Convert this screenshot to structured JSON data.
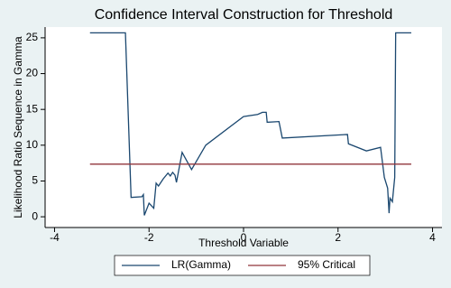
{
  "chart_data": {
    "type": "line",
    "title": "Confidence Interval Construction for Threshold",
    "x_label": "Threshold Variable",
    "y_label": "Likelihood Ratio Sequence in Gamma",
    "xlim": [
      -4.2,
      4.2
    ],
    "xticks": [
      -4,
      -2,
      0,
      2,
      4
    ],
    "ylim": [
      -1.5,
      26.5
    ],
    "yticks": [
      0,
      5,
      10,
      15,
      20,
      25
    ],
    "grid": false,
    "legend": "bottom",
    "series": [
      {
        "name": "LR(Gamma)",
        "color": "#1a476f",
        "x": [
          -3.25,
          -2.5,
          -2.38,
          -2.15,
          -2.12,
          -2.1,
          -2.0,
          -1.9,
          -1.85,
          -1.8,
          -1.7,
          -1.6,
          -1.55,
          -1.5,
          -1.45,
          -1.42,
          -1.3,
          -1.1,
          -0.8,
          0.0,
          0.3,
          0.4,
          0.48,
          0.5,
          0.75,
          0.82,
          2.2,
          2.22,
          2.6,
          2.9,
          2.98,
          3.05,
          3.08,
          3.1,
          3.15,
          3.2,
          3.22,
          3.55
        ],
        "values": [
          25.7,
          25.7,
          2.7,
          2.8,
          3.1,
          0.2,
          1.9,
          1.2,
          4.7,
          4.3,
          5.3,
          6.1,
          5.7,
          6.2,
          5.8,
          4.8,
          9.0,
          6.6,
          10.0,
          14.0,
          14.3,
          14.6,
          14.6,
          13.2,
          13.3,
          11.0,
          11.5,
          10.2,
          9.2,
          9.7,
          5.5,
          4.0,
          0.5,
          2.6,
          2.1,
          5.5,
          25.7,
          25.7
        ]
      },
      {
        "name": "95% Critical",
        "color": "#90353b",
        "x": [
          -3.25,
          3.55
        ],
        "values": [
          7.35,
          7.35
        ]
      }
    ]
  }
}
